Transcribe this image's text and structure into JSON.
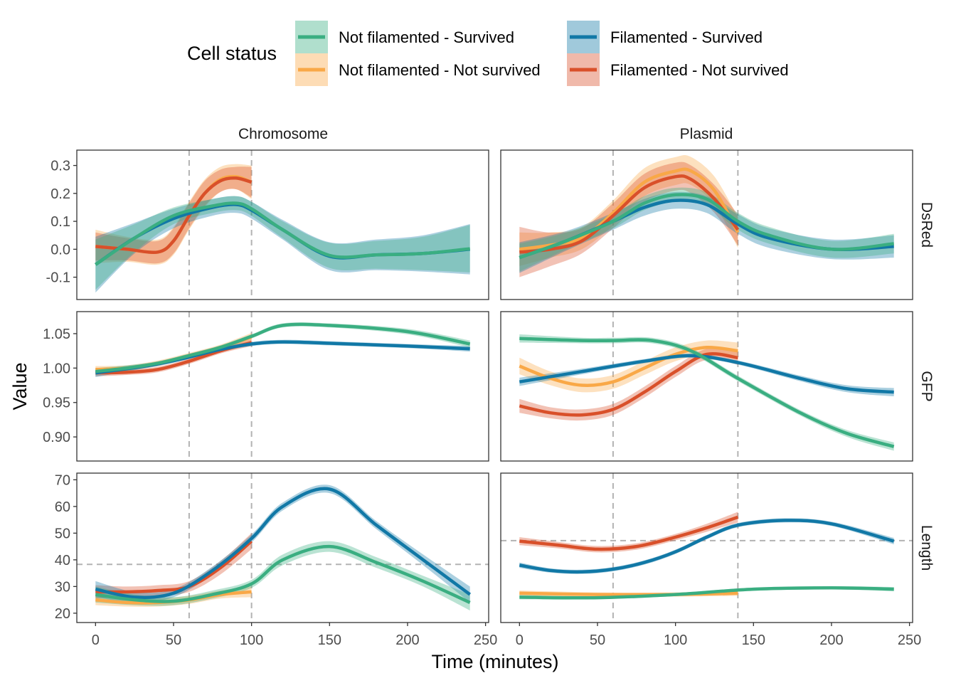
{
  "legend": {
    "title": "Cell status",
    "entries": [
      {
        "key": "nf_s",
        "label": "Not filamented - Survived",
        "color": "#3aae81"
      },
      {
        "key": "nf_ns",
        "label": "Not filamented - Not survived",
        "color": "#f9a847"
      },
      {
        "key": "f_s",
        "label": "Filamented - Survived",
        "color": "#1178a6"
      },
      {
        "key": "f_ns",
        "label": "Filamented - Not survived",
        "color": "#d9502a"
      }
    ]
  },
  "axes": {
    "xlabel": "Time (minutes)",
    "ylabel": "Value"
  },
  "chart_data": {
    "type": "line",
    "facets": {
      "columns": [
        "Chromosome",
        "Plasmid"
      ],
      "rows": [
        "DsRed",
        "GFP",
        "Length"
      ]
    },
    "xlim": [
      -12,
      252
    ],
    "x_ticks": [
      0,
      50,
      100,
      150,
      200,
      250
    ],
    "rows": {
      "DsRed": {
        "ylim": [
          -0.18,
          0.355
        ],
        "ticks": [
          -0.1,
          0.0,
          0.1,
          0.2,
          0.3
        ],
        "tick_labels": [
          "-0.1",
          "0.0",
          "0.1",
          "0.2",
          "0.3"
        ]
      },
      "GFP": {
        "ylim": [
          0.865,
          1.082
        ],
        "ticks": [
          0.9,
          0.95,
          1.0,
          1.05
        ],
        "tick_labels": [
          "0.90",
          "0.95",
          "1.00",
          "1.05"
        ]
      },
      "Length": {
        "ylim": [
          16.5,
          72.5
        ],
        "ticks": [
          20,
          30,
          40,
          50,
          60,
          70
        ],
        "tick_labels": [
          "20",
          "30",
          "40",
          "50",
          "60",
          "70"
        ]
      }
    },
    "vlines": {
      "Chromosome": [
        60,
        100
      ],
      "Plasmid": [
        60,
        140
      ]
    },
    "hlines": {
      "Chromosome|Length": 38.3,
      "Plasmid|Length": 47.2
    },
    "panels": [
      {
        "column": "Chromosome",
        "row": "DsRed",
        "series": [
          {
            "key": "nf_ns",
            "x": [
              0,
              20,
              40,
              50,
              60,
              70,
              80,
              90,
              100
            ],
            "y": [
              0.01,
              0.0,
              -0.01,
              0.03,
              0.12,
              0.2,
              0.25,
              0.26,
              0.24
            ],
            "ci": [
              0.06,
              0.045,
              0.045,
              0.05,
              0.05,
              0.05,
              0.045,
              0.045,
              0.06
            ]
          },
          {
            "key": "f_ns",
            "x": [
              0,
              20,
              40,
              50,
              60,
              70,
              80,
              90,
              100
            ],
            "y": [
              0.01,
              0.0,
              -0.01,
              0.03,
              0.12,
              0.2,
              0.245,
              0.255,
              0.24
            ],
            "ci": [
              0.05,
              0.04,
              0.04,
              0.045,
              0.045,
              0.045,
              0.04,
              0.04,
              0.055
            ]
          },
          {
            "key": "f_s",
            "x": [
              0,
              25,
              50,
              75,
              90,
              100,
              120,
              150,
              180,
              210,
              240
            ],
            "y": [
              -0.055,
              0.04,
              0.11,
              0.15,
              0.16,
              0.14,
              0.07,
              -0.025,
              -0.02,
              -0.015,
              0.0
            ],
            "ci": [
              0.1,
              0.055,
              0.035,
              0.03,
              0.03,
              0.03,
              0.035,
              0.05,
              0.055,
              0.065,
              0.09
            ]
          },
          {
            "key": "nf_s",
            "x": [
              0,
              25,
              50,
              75,
              90,
              100,
              120,
              150,
              180,
              210,
              240
            ],
            "y": [
              -0.055,
              0.04,
              0.12,
              0.155,
              0.165,
              0.145,
              0.07,
              -0.022,
              -0.02,
              -0.015,
              0.002
            ],
            "ci": [
              0.09,
              0.05,
              0.03,
              0.025,
              0.025,
              0.025,
              0.03,
              0.045,
              0.05,
              0.06,
              0.085
            ]
          }
        ]
      },
      {
        "column": "Plasmid",
        "row": "DsRed",
        "series": [
          {
            "key": "nf_ns",
            "x": [
              0,
              20,
              40,
              60,
              80,
              100,
              110,
              125,
              140
            ],
            "y": [
              0.0,
              0.015,
              0.04,
              0.13,
              0.24,
              0.28,
              0.28,
              0.21,
              0.06
            ],
            "ci": [
              0.06,
              0.045,
              0.04,
              0.045,
              0.05,
              0.05,
              0.05,
              0.05,
              0.055
            ]
          },
          {
            "key": "f_ns",
            "x": [
              0,
              20,
              40,
              60,
              80,
              100,
              110,
              125,
              140
            ],
            "y": [
              -0.01,
              0.0,
              0.03,
              0.12,
              0.22,
              0.26,
              0.25,
              0.18,
              0.07
            ],
            "ci": [
              0.09,
              0.06,
              0.045,
              0.045,
              0.05,
              0.05,
              0.05,
              0.05,
              0.055
            ]
          },
          {
            "key": "f_s",
            "x": [
              0,
              30,
              60,
              80,
              100,
              120,
              140,
              160,
              200,
              240
            ],
            "y": [
              -0.03,
              0.03,
              0.1,
              0.15,
              0.175,
              0.16,
              0.09,
              0.04,
              0.0,
              0.01
            ],
            "ci": [
              0.055,
              0.035,
              0.03,
              0.03,
              0.03,
              0.03,
              0.035,
              0.035,
              0.035,
              0.04
            ]
          },
          {
            "key": "nf_s",
            "x": [
              0,
              30,
              60,
              80,
              100,
              120,
              140,
              160,
              200,
              240
            ],
            "y": [
              -0.03,
              0.03,
              0.1,
              0.165,
              0.195,
              0.18,
              0.1,
              0.05,
              0.0,
              0.02
            ],
            "ci": [
              0.05,
              0.03,
              0.025,
              0.025,
              0.025,
              0.025,
              0.03,
              0.03,
              0.03,
              0.035
            ]
          }
        ]
      },
      {
        "column": "Chromosome",
        "row": "GFP",
        "series": [
          {
            "key": "nf_ns",
            "x": [
              0,
              20,
              40,
              60,
              80,
              100
            ],
            "y": [
              0.998,
              1.0,
              1.007,
              1.018,
              1.03,
              1.045
            ],
            "ci": [
              0.005,
              0.004,
              0.004,
              0.004,
              0.004,
              0.006
            ]
          },
          {
            "key": "f_ns",
            "x": [
              0,
              20,
              40,
              60,
              80,
              100
            ],
            "y": [
              0.993,
              0.994,
              0.998,
              1.01,
              1.025,
              1.037
            ],
            "ci": [
              0.005,
              0.004,
              0.004,
              0.004,
              0.004,
              0.005
            ]
          },
          {
            "key": "f_s",
            "x": [
              0,
              20,
              40,
              60,
              80,
              100,
              120,
              150,
              200,
              240
            ],
            "y": [
              0.993,
              0.999,
              1.006,
              1.016,
              1.027,
              1.035,
              1.038,
              1.036,
              1.032,
              1.028
            ],
            "ci": [
              0.006,
              0.004,
              0.003,
              0.003,
              0.003,
              0.003,
              0.003,
              0.003,
              0.003,
              0.004
            ]
          },
          {
            "key": "nf_s",
            "x": [
              0,
              20,
              40,
              60,
              80,
              100,
              120,
              150,
              200,
              240
            ],
            "y": [
              0.995,
              1.0,
              1.007,
              1.018,
              1.03,
              1.046,
              1.062,
              1.062,
              1.053,
              1.035
            ],
            "ci": [
              0.005,
              0.004,
              0.003,
              0.003,
              0.003,
              0.003,
              0.003,
              0.003,
              0.004,
              0.005
            ]
          }
        ]
      },
      {
        "column": "Plasmid",
        "row": "GFP",
        "series": [
          {
            "key": "nf_ns",
            "x": [
              0,
              20,
              40,
              60,
              80,
              100,
              120,
              140
            ],
            "y": [
              1.003,
              0.985,
              0.975,
              0.98,
              1.0,
              1.02,
              1.03,
              1.025
            ],
            "ci": [
              0.012,
              0.01,
              0.01,
              0.01,
              0.01,
              0.01,
              0.01,
              0.012
            ]
          },
          {
            "key": "f_ns",
            "x": [
              0,
              20,
              40,
              60,
              80,
              100,
              120,
              140
            ],
            "y": [
              0.945,
              0.935,
              0.932,
              0.94,
              0.965,
              0.995,
              1.02,
              1.015
            ],
            "ci": [
              0.01,
              0.008,
              0.008,
              0.008,
              0.008,
              0.008,
              0.008,
              0.01
            ]
          },
          {
            "key": "f_s",
            "x": [
              0,
              40,
              80,
              110,
              140,
              180,
              210,
              240
            ],
            "y": [
              0.98,
              0.995,
              1.01,
              1.018,
              1.008,
              0.985,
              0.97,
              0.965
            ],
            "ci": [
              0.006,
              0.004,
              0.003,
              0.003,
              0.003,
              0.004,
              0.005,
              0.006
            ]
          },
          {
            "key": "nf_s",
            "x": [
              0,
              40,
              60,
              85,
              110,
              140,
              180,
              210,
              240
            ],
            "y": [
              1.043,
              1.04,
              1.04,
              1.04,
              1.025,
              0.985,
              0.935,
              0.905,
              0.886
            ],
            "ci": [
              0.006,
              0.004,
              0.004,
              0.004,
              0.004,
              0.004,
              0.004,
              0.005,
              0.006
            ]
          }
        ]
      },
      {
        "column": "Chromosome",
        "row": "Length",
        "series": [
          {
            "key": "nf_ns",
            "x": [
              0,
              20,
              40,
              60,
              80,
              100
            ],
            "y": [
              25.0,
              24.0,
              24.0,
              25.0,
              27.0,
              28.0
            ],
            "ci": [
              2.0,
              1.5,
              1.5,
              1.5,
              1.5,
              2.0
            ]
          },
          {
            "key": "f_ns",
            "x": [
              0,
              20,
              40,
              60,
              80,
              100
            ],
            "y": [
              28.0,
              28.0,
              28.5,
              30.0,
              37.0,
              47.0
            ],
            "ci": [
              2.5,
              2.0,
              2.0,
              2.0,
              2.5,
              3.0
            ]
          },
          {
            "key": "f_s",
            "x": [
              0,
              25,
              50,
              75,
              100,
              120,
              150,
              180,
              210,
              240
            ],
            "y": [
              29.0,
              26.0,
              27.5,
              36.0,
              48.0,
              60.0,
              66.5,
              53.0,
              40.0,
              27.0
            ],
            "ci": [
              3.0,
              2.0,
              1.5,
              1.5,
              1.5,
              1.5,
              1.5,
              1.5,
              2.0,
              3.0
            ]
          },
          {
            "key": "nf_s",
            "x": [
              0,
              25,
              50,
              75,
              100,
              120,
              150,
              180,
              210,
              240
            ],
            "y": [
              27.0,
              25.0,
              24.5,
              27.0,
              31.0,
              40.0,
              45.0,
              39.0,
              32.0,
              24.0
            ],
            "ci": [
              3.0,
              2.0,
              1.5,
              1.5,
              1.5,
              2.0,
              2.0,
              2.0,
              2.0,
              3.0
            ]
          }
        ]
      },
      {
        "column": "Plasmid",
        "row": "Length",
        "series": [
          {
            "key": "nf_ns",
            "x": [
              0,
              50,
              100,
              140
            ],
            "y": [
              27.5,
              27.0,
              27.0,
              27.5
            ],
            "ci": [
              1.0,
              0.8,
              0.8,
              1.0
            ]
          },
          {
            "key": "f_ns",
            "x": [
              0,
              25,
              50,
              75,
              100,
              120,
              140
            ],
            "y": [
              47.0,
              45.5,
              44.0,
              45.0,
              48.5,
              52.0,
              56.0
            ],
            "ci": [
              1.5,
              1.2,
              1.2,
              1.2,
              1.2,
              1.5,
              2.0
            ]
          },
          {
            "key": "f_s",
            "x": [
              0,
              20,
              40,
              60,
              80,
              100,
              120,
              140,
              170,
              200,
              240
            ],
            "y": [
              38.0,
              36.0,
              35.5,
              36.5,
              39.0,
              43.0,
              48.5,
              53.0,
              54.8,
              53.5,
              47.0
            ],
            "ci": [
              1.0,
              0.8,
              0.8,
              0.8,
              0.8,
              0.8,
              0.8,
              0.8,
              0.8,
              0.8,
              1.2
            ]
          },
          {
            "key": "nf_s",
            "x": [
              0,
              50,
              100,
              150,
              200,
              240
            ],
            "y": [
              26.0,
              25.8,
              27.0,
              29.0,
              29.5,
              29.0
            ],
            "ci": [
              0.8,
              0.6,
              0.6,
              0.6,
              0.6,
              0.8
            ]
          }
        ]
      }
    ]
  }
}
